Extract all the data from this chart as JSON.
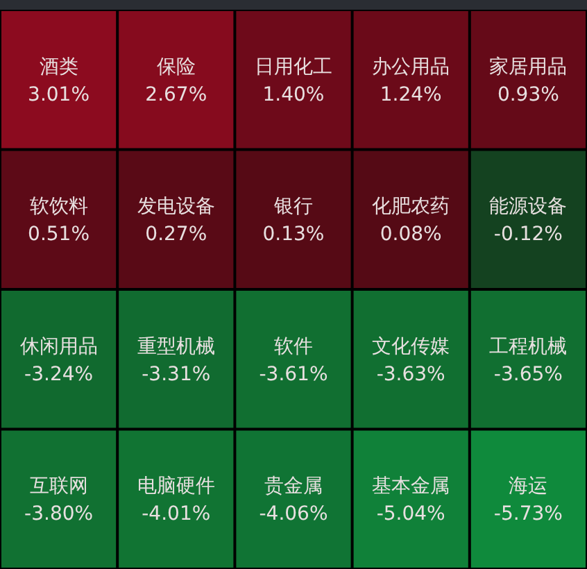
{
  "chart_data": {
    "type": "other",
    "categories": [
      "酒类",
      "保险",
      "日用化工",
      "办公用品",
      "家居用品",
      "软饮料",
      "发电设备",
      "银行",
      "化肥农药",
      "能源设备",
      "休闲用品",
      "重型机械",
      "软件",
      "文化传媒",
      "工程机械",
      "互联网",
      "电脑硬件",
      "贵金属",
      "基本金属",
      "海运"
    ],
    "values": [
      3.01,
      2.67,
      1.4,
      1.24,
      0.93,
      0.51,
      0.27,
      0.13,
      0.08,
      -0.12,
      -3.24,
      -3.31,
      -3.61,
      -3.63,
      -3.65,
      -3.8,
      -4.01,
      -4.06,
      -5.04,
      -5.73
    ],
    "value_labels": [
      "3.01%",
      "2.67%",
      "1.40%",
      "1.24%",
      "0.93%",
      "0.51%",
      "0.27%",
      "0.13%",
      "0.08%",
      "-0.12%",
      "-3.24%",
      "-3.31%",
      "-3.61%",
      "-3.63%",
      "-3.65%",
      "-3.80%",
      "-4.01%",
      "-4.06%",
      "-5.04%",
      "-5.73%"
    ]
  }
}
